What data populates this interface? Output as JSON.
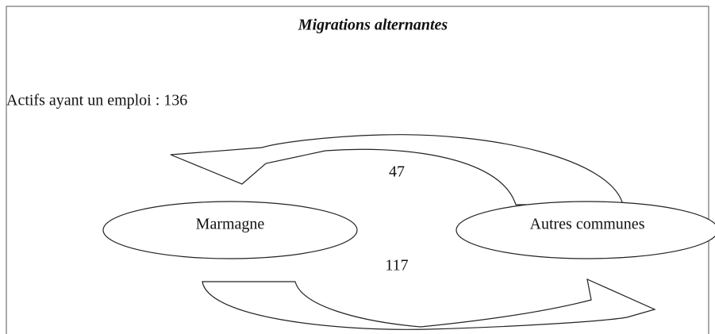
{
  "header": {
    "title": "Migrations alternantes"
  },
  "summary": "Actifs ayant un emploi : 136",
  "nodes": [
    {
      "label": "Marmagne"
    },
    {
      "label": "Autres communes"
    }
  ],
  "flows": [
    {
      "label": "47"
    },
    {
      "label": "117"
    }
  ]
}
